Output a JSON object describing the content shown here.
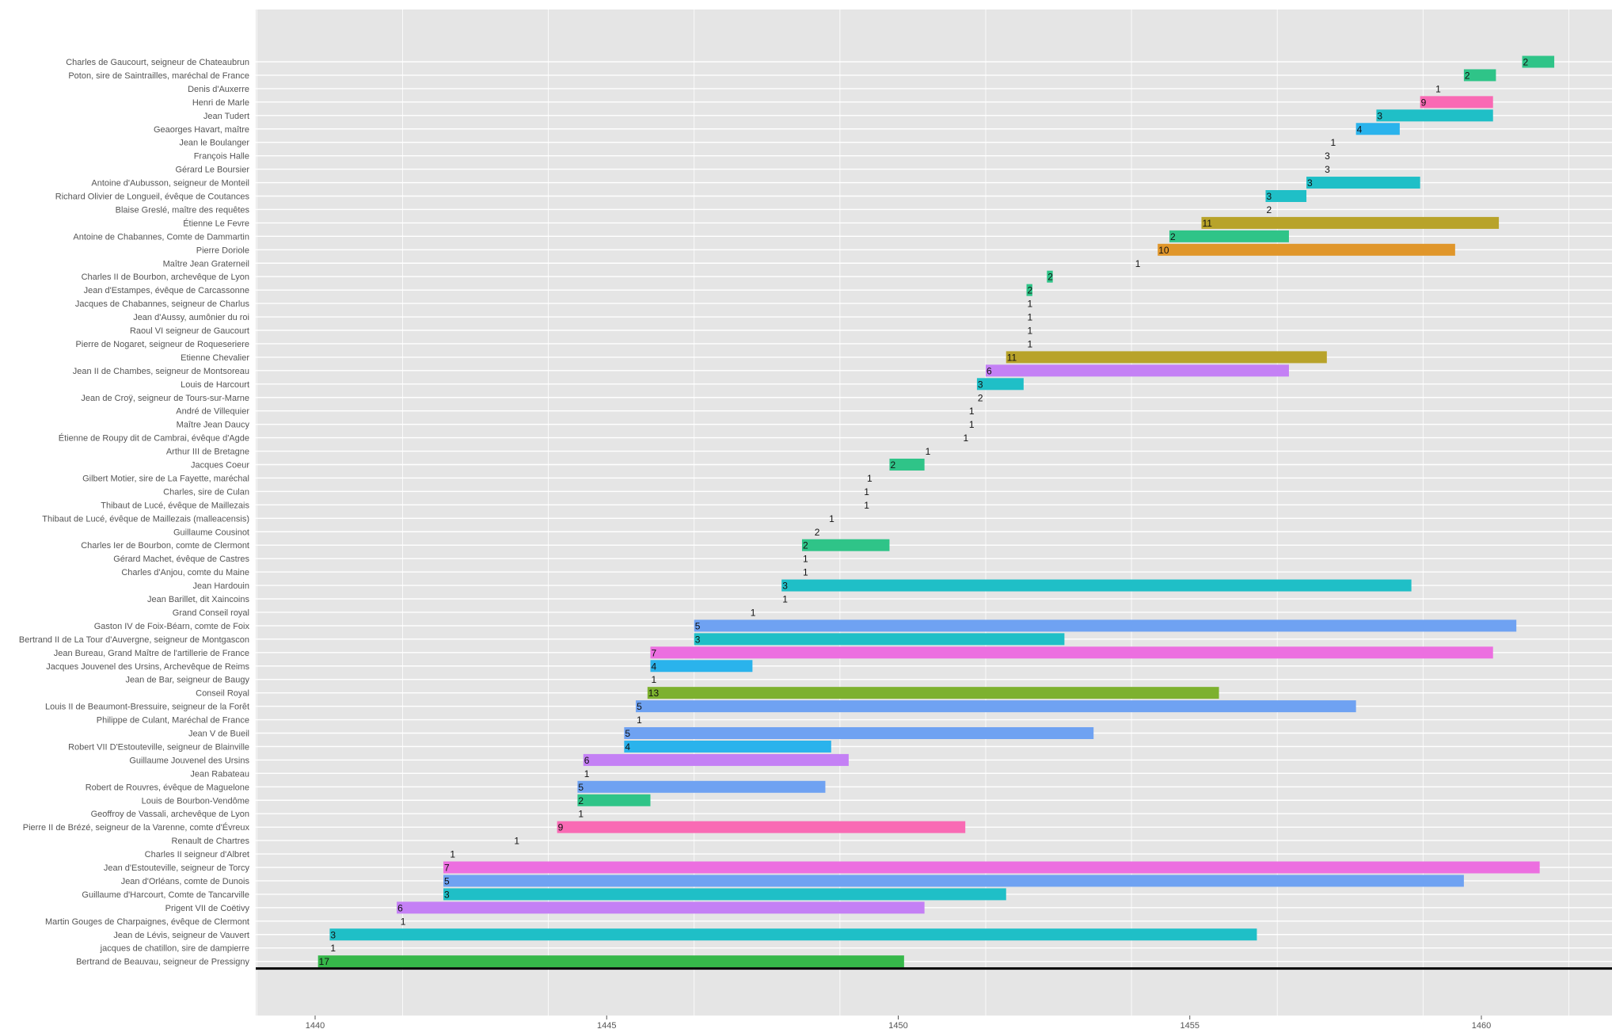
{
  "chart_data": {
    "type": "bar",
    "orientation": "horizontal-range",
    "title": "",
    "xlabel": "",
    "ylabel": "",
    "xlim": [
      1439,
      1463
    ],
    "x_ticks": [
      1440,
      1445,
      1450,
      1455,
      1460
    ],
    "grid": true,
    "legend": "none",
    "baseline_rule_below_last_row": true,
    "items": [
      {
        "name": "Charles de Gaucourt, seigneur de Chateaubrun",
        "start": 1460.7,
        "end": 1461.25,
        "count": 2,
        "color": "#2fc488"
      },
      {
        "name": "Poton, sire de Saintrailles, maréchal de France",
        "start": 1459.7,
        "end": 1460.25,
        "count": 2,
        "color": "#2fc488"
      },
      {
        "name": "Denis d'Auxerre",
        "start": 1459.2,
        "end": 1459.2,
        "count": 1,
        "color": "#2fc488"
      },
      {
        "name": "Henri de Marle",
        "start": 1458.95,
        "end": 1460.2,
        "count": 9,
        "color": "#f96ab4"
      },
      {
        "name": "Jean Tudert",
        "start": 1458.2,
        "end": 1460.2,
        "count": 3,
        "color": "#1fbfc7"
      },
      {
        "name": "Geaorges Havart, maître",
        "start": 1457.85,
        "end": 1458.6,
        "count": 4,
        "color": "#2ab3ec"
      },
      {
        "name": "Jean le Boulanger",
        "start": 1457.4,
        "end": 1457.4,
        "count": 1,
        "color": "#2fc488"
      },
      {
        "name": "François Halle",
        "start": 1457.3,
        "end": 1457.3,
        "count": 3,
        "color": "#1fbfc7"
      },
      {
        "name": "Gérard Le Boursier",
        "start": 1457.3,
        "end": 1457.3,
        "count": 3,
        "color": "#1fbfc7"
      },
      {
        "name": "Antoine d'Aubusson, seigneur de Monteil",
        "start": 1457.0,
        "end": 1458.95,
        "count": 3,
        "color": "#1fbfc7"
      },
      {
        "name": "Richard Olivier de Longueil, évêque de Coutances",
        "start": 1456.3,
        "end": 1457.0,
        "count": 3,
        "color": "#1fbfc7"
      },
      {
        "name": "Blaise Greslé, maître des requêtes",
        "start": 1456.3,
        "end": 1456.3,
        "count": 2,
        "color": "#2fc488"
      },
      {
        "name": "Étienne Le Fevre",
        "start": 1455.2,
        "end": 1460.3,
        "count": 11,
        "color": "#b8a32a"
      },
      {
        "name": "Antoine de Chabannes, Comte de Dammartin",
        "start": 1454.65,
        "end": 1456.7,
        "count": 2,
        "color": "#2fc488"
      },
      {
        "name": "Pierre Doriole",
        "start": 1454.45,
        "end": 1459.55,
        "count": 10,
        "color": "#e0962a"
      },
      {
        "name": "Maître Jean Graterneil",
        "start": 1454.05,
        "end": 1454.05,
        "count": 1,
        "color": "#2fc488"
      },
      {
        "name": "Charles II de Bourbon, archevêque de Lyon",
        "start": 1452.55,
        "end": 1452.65,
        "count": 2,
        "color": "#2fc488"
      },
      {
        "name": "Jean d'Estampes, évêque de Carcassonne",
        "start": 1452.2,
        "end": 1452.3,
        "count": 2,
        "color": "#2fc488"
      },
      {
        "name": "Jacques de Chabannes, seigneur de Charlus",
        "start": 1452.2,
        "end": 1452.2,
        "count": 1,
        "color": "#2fc488"
      },
      {
        "name": "Jean d'Aussy, aumônier du roi",
        "start": 1452.2,
        "end": 1452.2,
        "count": 1,
        "color": "#2fc488"
      },
      {
        "name": "Raoul VI seigneur de Gaucourt",
        "start": 1452.2,
        "end": 1452.2,
        "count": 1,
        "color": "#2fc488"
      },
      {
        "name": "Pierre de Nogaret, seigneur de Roqueseriere",
        "start": 1452.2,
        "end": 1452.2,
        "count": 1,
        "color": "#2fc488"
      },
      {
        "name": "Etienne Chevalier",
        "start": 1451.85,
        "end": 1457.35,
        "count": 11,
        "color": "#b8a32a"
      },
      {
        "name": "Jean II de Chambes, seigneur de Montsoreau",
        "start": 1451.5,
        "end": 1456.7,
        "count": 6,
        "color": "#c480f5"
      },
      {
        "name": "Louis de Harcourt",
        "start": 1451.35,
        "end": 1452.15,
        "count": 3,
        "color": "#1fbfc7"
      },
      {
        "name": "Jean de Croÿ, seigneur de Tours-sur-Marne",
        "start": 1451.35,
        "end": 1451.35,
        "count": 2,
        "color": "#2fc488"
      },
      {
        "name": "André de Villequier",
        "start": 1451.2,
        "end": 1451.2,
        "count": 1,
        "color": "#2fc488"
      },
      {
        "name": "Maître Jean Daucy",
        "start": 1451.2,
        "end": 1451.2,
        "count": 1,
        "color": "#2fc488"
      },
      {
        "name": "Étienne de Roupy dit de Cambrai, évêque d'Agde",
        "start": 1451.1,
        "end": 1451.1,
        "count": 1,
        "color": "#2fc488"
      },
      {
        "name": "Arthur III de Bretagne",
        "start": 1450.45,
        "end": 1450.45,
        "count": 1,
        "color": "#2fc488"
      },
      {
        "name": "Jacques Coeur",
        "start": 1449.85,
        "end": 1450.45,
        "count": 2,
        "color": "#2fc488"
      },
      {
        "name": "Gilbert Motier, sire de La Fayette, maréchal",
        "start": 1449.45,
        "end": 1449.45,
        "count": 1,
        "color": "#2fc488"
      },
      {
        "name": "Charles, sire de Culan",
        "start": 1449.4,
        "end": 1449.4,
        "count": 1,
        "color": "#2fc488"
      },
      {
        "name": "Thibaut de Lucé, évêque de Maillezais",
        "start": 1449.4,
        "end": 1449.4,
        "count": 1,
        "color": "#2fc488"
      },
      {
        "name": "Thibaut de Lucé, évêque de Maillezais (malleacensis)",
        "start": 1448.8,
        "end": 1448.8,
        "count": 1,
        "color": "#2fc488"
      },
      {
        "name": "Guillaume Cousinot",
        "start": 1448.55,
        "end": 1448.55,
        "count": 2,
        "color": "#2fc488"
      },
      {
        "name": "Charles Ier de Bourbon, comte de Clermont",
        "start": 1448.35,
        "end": 1449.85,
        "count": 2,
        "color": "#2fc488"
      },
      {
        "name": "Gérard Machet, évêque de Castres",
        "start": 1448.35,
        "end": 1448.35,
        "count": 1,
        "color": "#2fc488"
      },
      {
        "name": "Charles d'Anjou, comte du Maine",
        "start": 1448.35,
        "end": 1448.35,
        "count": 1,
        "color": "#2fc488"
      },
      {
        "name": "Jean Hardouin",
        "start": 1448.0,
        "end": 1458.8,
        "count": 3,
        "color": "#1fbfc7"
      },
      {
        "name": "Jean Barillet, dit Xaincoins",
        "start": 1448.0,
        "end": 1448.0,
        "count": 1,
        "color": "#2fc488"
      },
      {
        "name": "Grand Conseil royal",
        "start": 1447.45,
        "end": 1447.45,
        "count": 1,
        "color": "#2fc488"
      },
      {
        "name": "Gaston IV de Foix-Béarn, comte de Foix",
        "start": 1446.5,
        "end": 1460.6,
        "count": 5,
        "color": "#6fa2f2"
      },
      {
        "name": "Bertrand II de La Tour d'Auvergne, seigneur de Montgascon",
        "start": 1446.5,
        "end": 1452.85,
        "count": 3,
        "color": "#1fbfc7"
      },
      {
        "name": "Jean Bureau, Grand Maître de l'artillerie de France",
        "start": 1445.75,
        "end": 1460.2,
        "count": 7,
        "color": "#ec6fe0"
      },
      {
        "name": "Jacques Jouvenel des Ursins, Archevêque de Reims",
        "start": 1445.75,
        "end": 1447.5,
        "count": 4,
        "color": "#2ab3ec"
      },
      {
        "name": "Jean de Bar, seigneur de Baugy",
        "start": 1445.75,
        "end": 1445.75,
        "count": 1,
        "color": "#2fc488"
      },
      {
        "name": "Conseil Royal",
        "start": 1445.7,
        "end": 1455.5,
        "count": 13,
        "color": "#7db12f"
      },
      {
        "name": "Louis II de Beaumont-Bressuire, seigneur de la Forêt",
        "start": 1445.5,
        "end": 1457.85,
        "count": 5,
        "color": "#6fa2f2"
      },
      {
        "name": "Philippe de Culant, Maréchal de France",
        "start": 1445.5,
        "end": 1445.5,
        "count": 1,
        "color": "#2fc488"
      },
      {
        "name": "Jean V de Bueil",
        "start": 1445.3,
        "end": 1453.35,
        "count": 5,
        "color": "#6fa2f2"
      },
      {
        "name": "Robert VII D'Estouteville, seigneur de Blainville",
        "start": 1445.3,
        "end": 1448.85,
        "count": 4,
        "color": "#2ab3ec"
      },
      {
        "name": "Guillaume Jouvenel des Ursins",
        "start": 1444.6,
        "end": 1449.15,
        "count": 6,
        "color": "#c480f5"
      },
      {
        "name": "Jean Rabateau",
        "start": 1444.6,
        "end": 1444.6,
        "count": 1,
        "color": "#2fc488"
      },
      {
        "name": "Robert de Rouvres, évêque de Maguelone",
        "start": 1444.5,
        "end": 1448.75,
        "count": 5,
        "color": "#6fa2f2"
      },
      {
        "name": "Louis de Bourbon-Vendôme",
        "start": 1444.5,
        "end": 1445.75,
        "count": 2,
        "color": "#2fc488"
      },
      {
        "name": "Geoffroy de Vassali, archevêque de Lyon",
        "start": 1444.5,
        "end": 1444.5,
        "count": 1,
        "color": "#2fc488"
      },
      {
        "name": "Pierre II de Brézé, seigneur de la Varenne, comte d'Évreux",
        "start": 1444.15,
        "end": 1451.15,
        "count": 9,
        "color": "#f96ab4"
      },
      {
        "name": "Renault de Chartres",
        "start": 1443.4,
        "end": 1443.4,
        "count": 1,
        "color": "#2fc488"
      },
      {
        "name": "Charles II seigneur d'Albret",
        "start": 1442.3,
        "end": 1442.3,
        "count": 1,
        "color": "#2fc488"
      },
      {
        "name": "Jean d'Estouteville, seigneur de Torcy",
        "start": 1442.2,
        "end": 1461.0,
        "count": 7,
        "color": "#ec6fe0"
      },
      {
        "name": "Jean d'Orléans, comte de Dunois",
        "start": 1442.2,
        "end": 1459.7,
        "count": 5,
        "color": "#6fa2f2"
      },
      {
        "name": "Guillaume d'Harcourt, Comte de Tancarville",
        "start": 1442.2,
        "end": 1451.85,
        "count": 3,
        "color": "#1fbfc7"
      },
      {
        "name": "Prigent VII de Coëtivy",
        "start": 1441.4,
        "end": 1450.45,
        "count": 6,
        "color": "#c480f5"
      },
      {
        "name": "Martin Gouges de Charpaignes, évêque de Clermont",
        "start": 1441.45,
        "end": 1441.45,
        "count": 1,
        "color": "#2fc488"
      },
      {
        "name": "Jean de Lévis, seigneur de Vauvert",
        "start": 1440.25,
        "end": 1456.15,
        "count": 3,
        "color": "#1fbfc7"
      },
      {
        "name": "jacques de chatillon, sire de dampierre",
        "start": 1440.25,
        "end": 1440.25,
        "count": 1,
        "color": "#2fc488"
      },
      {
        "name": "Bertrand de Beauvau, seigneur de Pressigny",
        "start": 1440.05,
        "end": 1450.1,
        "count": 17,
        "color": "#36b84a"
      }
    ]
  }
}
